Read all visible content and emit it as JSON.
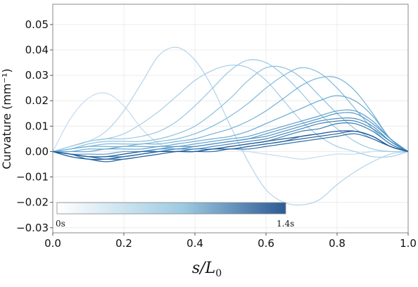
{
  "chart_data": {
    "type": "line",
    "title": "",
    "xlabel": {
      "main": "s/L",
      "subscript": "0"
    },
    "ylabel": "Curvature (mm⁻¹)",
    "xlim": [
      0,
      1
    ],
    "ylim": [
      -0.032,
      0.058
    ],
    "x_ticks": [
      0.0,
      0.2,
      0.4,
      0.6,
      0.8,
      1.0
    ],
    "x_tick_labels": [
      "0.0",
      "0.2",
      "0.4",
      "0.6",
      "0.8",
      "1.0"
    ],
    "y_ticks": [
      -0.03,
      -0.02,
      -0.01,
      0.0,
      0.01,
      0.02,
      0.03,
      0.04,
      0.05
    ],
    "y_tick_labels": [
      "−0.03",
      "−0.02",
      "−0.01",
      "0.00",
      "0.01",
      "0.02",
      "0.03",
      "0.04",
      "0.05"
    ],
    "grid": true,
    "colorbar": {
      "label_min": "0s",
      "label_max": "1.4s",
      "color_start": "#ffffff",
      "color_mid": "#9ecae1",
      "color_end": "#2c5a96"
    },
    "series": [
      {
        "color": "#c6dbef",
        "x": [
          0,
          0.05,
          0.1,
          0.15,
          0.2,
          0.25,
          0.3,
          0.35,
          0.4,
          0.45,
          0.5,
          0.55,
          0.6,
          0.65,
          0.7,
          0.75,
          0.8,
          0.85,
          0.9,
          0.95,
          1.0
        ],
        "y": [
          0,
          0.013,
          0.021,
          0.023,
          0.018,
          0.009,
          0.003,
          0.001,
          0.001,
          0.001,
          0.001,
          0.0,
          -0.001,
          -0.002,
          -0.003,
          -0.002,
          -0.001,
          -0.001,
          0,
          0,
          0
        ]
      },
      {
        "color": "#b3d3ea",
        "x": [
          0,
          0.05,
          0.1,
          0.15,
          0.2,
          0.25,
          0.3,
          0.35,
          0.4,
          0.45,
          0.5,
          0.55,
          0.6,
          0.65,
          0.7,
          0.75,
          0.8,
          0.85,
          0.9,
          0.95,
          1.0
        ],
        "y": [
          0,
          0.002,
          0.004,
          0.008,
          0.016,
          0.027,
          0.038,
          0.041,
          0.036,
          0.025,
          0.01,
          -0.004,
          -0.015,
          -0.02,
          -0.021,
          -0.019,
          -0.013,
          -0.008,
          -0.004,
          -0.001,
          0
        ]
      },
      {
        "color": "#a6cde5",
        "x": [
          0,
          0.05,
          0.1,
          0.15,
          0.2,
          0.25,
          0.3,
          0.35,
          0.4,
          0.45,
          0.5,
          0.55,
          0.6,
          0.65,
          0.7,
          0.75,
          0.8,
          0.85,
          0.9,
          0.95,
          1.0
        ],
        "y": [
          0,
          0.002,
          0.004,
          0.005,
          0.007,
          0.011,
          0.016,
          0.022,
          0.028,
          0.032,
          0.034,
          0.033,
          0.028,
          0.02,
          0.012,
          0.006,
          0.002,
          0.0,
          -0.002,
          -0.002,
          0
        ]
      },
      {
        "color": "#9ac8e2",
        "x": [
          0,
          0.05,
          0.1,
          0.15,
          0.2,
          0.25,
          0.3,
          0.35,
          0.4,
          0.45,
          0.5,
          0.55,
          0.6,
          0.65,
          0.7,
          0.75,
          0.8,
          0.85,
          0.9,
          0.95,
          1.0
        ],
        "y": [
          0,
          0.002,
          0.004,
          0.005,
          0.005,
          0.006,
          0.008,
          0.012,
          0.018,
          0.025,
          0.032,
          0.036,
          0.035,
          0.03,
          0.023,
          0.015,
          0.009,
          0.004,
          0.001,
          0.0,
          0
        ]
      },
      {
        "color": "#8cc0de",
        "x": [
          0,
          0.05,
          0.1,
          0.15,
          0.2,
          0.25,
          0.3,
          0.35,
          0.4,
          0.45,
          0.5,
          0.55,
          0.6,
          0.65,
          0.7,
          0.75,
          0.8,
          0.85,
          0.9,
          0.95,
          1.0
        ],
        "y": [
          0,
          0.001,
          0.003,
          0.004,
          0.004,
          0.004,
          0.005,
          0.007,
          0.01,
          0.015,
          0.021,
          0.028,
          0.033,
          0.033,
          0.029,
          0.022,
          0.015,
          0.009,
          0.005,
          0.002,
          0
        ]
      },
      {
        "color": "#80b9da",
        "x": [
          0,
          0.05,
          0.1,
          0.15,
          0.2,
          0.25,
          0.3,
          0.35,
          0.4,
          0.45,
          0.5,
          0.55,
          0.6,
          0.65,
          0.7,
          0.75,
          0.8,
          0.85,
          0.9,
          0.95,
          1.0
        ],
        "y": [
          0,
          0.001,
          0.002,
          0.003,
          0.003,
          0.003,
          0.004,
          0.005,
          0.007,
          0.01,
          0.014,
          0.019,
          0.025,
          0.03,
          0.033,
          0.031,
          0.025,
          0.017,
          0.009,
          0.003,
          0
        ]
      },
      {
        "color": "#74b1d6",
        "x": [
          0,
          0.05,
          0.1,
          0.15,
          0.2,
          0.25,
          0.3,
          0.35,
          0.4,
          0.45,
          0.5,
          0.55,
          0.6,
          0.65,
          0.7,
          0.75,
          0.8,
          0.85,
          0.9,
          0.95,
          1.0
        ],
        "y": [
          0,
          0.001,
          0.002,
          0.002,
          0.002,
          0.003,
          0.003,
          0.004,
          0.005,
          0.007,
          0.009,
          0.012,
          0.016,
          0.021,
          0.026,
          0.029,
          0.029,
          0.024,
          0.015,
          0.005,
          0
        ]
      },
      {
        "color": "#69a9d1",
        "x": [
          0,
          0.05,
          0.1,
          0.15,
          0.2,
          0.25,
          0.3,
          0.35,
          0.4,
          0.45,
          0.5,
          0.55,
          0.6,
          0.65,
          0.7,
          0.75,
          0.8,
          0.85,
          0.9,
          0.95,
          1.0
        ],
        "y": [
          0,
          0.0,
          0.001,
          0.001,
          0.002,
          0.002,
          0.002,
          0.003,
          0.004,
          0.005,
          0.006,
          0.008,
          0.011,
          0.014,
          0.017,
          0.02,
          0.022,
          0.02,
          0.014,
          0.005,
          0
        ]
      },
      {
        "color": "#5ea0cc",
        "x": [
          0,
          0.05,
          0.1,
          0.15,
          0.2,
          0.25,
          0.3,
          0.35,
          0.4,
          0.45,
          0.5,
          0.55,
          0.6,
          0.65,
          0.7,
          0.75,
          0.8,
          0.85,
          0.9,
          0.95,
          1.0
        ],
        "y": [
          0,
          0.0,
          0.0,
          0.001,
          0.001,
          0.001,
          0.002,
          0.002,
          0.003,
          0.004,
          0.005,
          0.006,
          0.008,
          0.01,
          0.012,
          0.014,
          0.016,
          0.016,
          0.012,
          0.005,
          0
        ]
      },
      {
        "color": "#5398c7",
        "x": [
          0,
          0.05,
          0.1,
          0.15,
          0.2,
          0.25,
          0.3,
          0.35,
          0.4,
          0.45,
          0.5,
          0.55,
          0.6,
          0.65,
          0.7,
          0.75,
          0.8,
          0.85,
          0.9,
          0.95,
          1.0
        ],
        "y": [
          0,
          -0.001,
          -0.001,
          -0.001,
          0.0,
          0.0,
          0.001,
          0.002,
          0.002,
          0.003,
          0.004,
          0.005,
          0.007,
          0.009,
          0.011,
          0.013,
          0.015,
          0.015,
          0.011,
          0.005,
          0
        ]
      },
      {
        "color": "#4a8fc1",
        "x": [
          0,
          0.05,
          0.1,
          0.15,
          0.2,
          0.25,
          0.3,
          0.35,
          0.4,
          0.45,
          0.5,
          0.55,
          0.6,
          0.65,
          0.7,
          0.75,
          0.8,
          0.85,
          0.9,
          0.95,
          1.0
        ],
        "y": [
          0,
          -0.001,
          -0.002,
          -0.002,
          -0.001,
          0.0,
          0.001,
          0.001,
          0.002,
          0.003,
          0.004,
          0.005,
          0.006,
          0.008,
          0.01,
          0.012,
          0.013,
          0.013,
          0.01,
          0.004,
          0
        ]
      },
      {
        "color": "#4286bb",
        "x": [
          0,
          0.05,
          0.1,
          0.15,
          0.2,
          0.25,
          0.3,
          0.35,
          0.4,
          0.45,
          0.5,
          0.55,
          0.6,
          0.65,
          0.7,
          0.75,
          0.8,
          0.85,
          0.9,
          0.95,
          1.0
        ],
        "y": [
          0,
          -0.001,
          -0.002,
          -0.002,
          -0.002,
          -0.001,
          0.0,
          0.001,
          0.001,
          0.002,
          0.003,
          0.004,
          0.005,
          0.007,
          0.009,
          0.011,
          0.012,
          0.012,
          0.009,
          0.004,
          0
        ]
      },
      {
        "color": "#3a7db4",
        "x": [
          0,
          0.05,
          0.1,
          0.15,
          0.2,
          0.25,
          0.3,
          0.35,
          0.4,
          0.45,
          0.5,
          0.55,
          0.6,
          0.65,
          0.7,
          0.75,
          0.8,
          0.85,
          0.9,
          0.95,
          1.0
        ],
        "y": [
          0,
          -0.001,
          -0.002,
          -0.003,
          -0.002,
          -0.001,
          0.0,
          0.0,
          0.001,
          0.001,
          0.002,
          0.003,
          0.004,
          0.006,
          0.008,
          0.009,
          0.011,
          0.011,
          0.008,
          0.003,
          0
        ]
      },
      {
        "color": "#3374ad",
        "x": [
          0,
          0.05,
          0.1,
          0.15,
          0.2,
          0.25,
          0.3,
          0.35,
          0.4,
          0.45,
          0.5,
          0.55,
          0.6,
          0.65,
          0.7,
          0.75,
          0.8,
          0.85,
          0.9,
          0.95,
          1.0
        ],
        "y": [
          0,
          -0.001,
          -0.003,
          -0.003,
          -0.003,
          -0.002,
          -0.001,
          0.0,
          0.0,
          0.001,
          0.001,
          0.002,
          0.003,
          0.004,
          0.006,
          0.007,
          0.008,
          0.008,
          0.006,
          0.002,
          0
        ]
      },
      {
        "color": "#2c6aa5",
        "x": [
          0,
          0.05,
          0.1,
          0.15,
          0.2,
          0.25,
          0.3,
          0.35,
          0.4,
          0.45,
          0.5,
          0.55,
          0.6,
          0.65,
          0.7,
          0.75,
          0.8,
          0.85,
          0.9,
          0.95,
          1.0
        ],
        "y": [
          0,
          -0.002,
          -0.003,
          -0.004,
          -0.003,
          -0.002,
          -0.001,
          0.0,
          0.0,
          0.0,
          0.001,
          0.001,
          0.002,
          0.003,
          0.004,
          0.005,
          0.006,
          0.007,
          0.005,
          0.002,
          0
        ]
      },
      {
        "color": "#24609c",
        "x": [
          0,
          0.05,
          0.1,
          0.15,
          0.2,
          0.25,
          0.3,
          0.35,
          0.4,
          0.45,
          0.5,
          0.55,
          0.6,
          0.65,
          0.7,
          0.75,
          0.8,
          0.85,
          0.9,
          0.95,
          1.0
        ],
        "y": [
          0,
          -0.002,
          -0.003,
          -0.003,
          -0.002,
          -0.001,
          0.0,
          0.0,
          0.0,
          0.001,
          0.001,
          0.002,
          0.003,
          0.004,
          0.005,
          0.006,
          0.007,
          0.008,
          0.006,
          0.002,
          0
        ]
      },
      {
        "color": "#1d5695",
        "x": [
          0,
          0.05,
          0.1,
          0.15,
          0.2,
          0.25,
          0.3,
          0.35,
          0.4,
          0.45,
          0.5,
          0.55,
          0.6,
          0.65,
          0.7,
          0.75,
          0.8,
          0.85,
          0.9,
          0.95,
          1.0
        ],
        "y": [
          0,
          -0.001,
          -0.002,
          -0.002,
          -0.001,
          0.0,
          0.0,
          0.0,
          0.0,
          0.001,
          0.002,
          0.003,
          0.004,
          0.005,
          0.006,
          0.007,
          0.008,
          0.008,
          0.006,
          0.002,
          0
        ]
      }
    ]
  }
}
